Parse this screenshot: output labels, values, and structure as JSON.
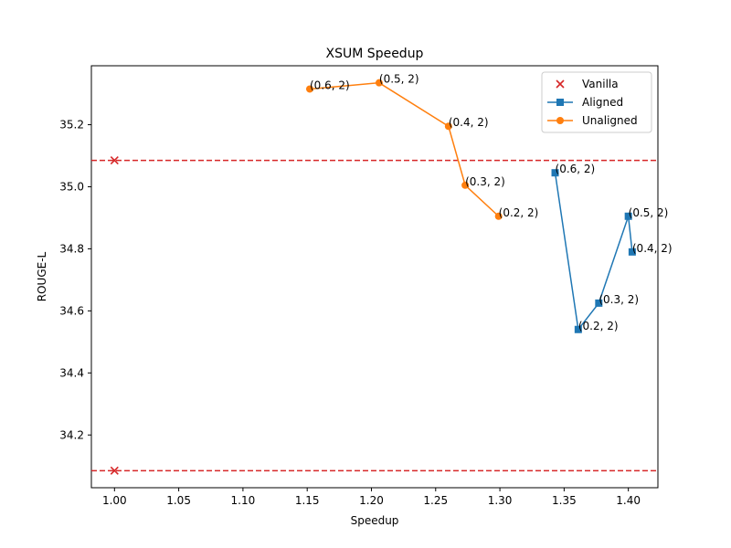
{
  "chart_data": {
    "type": "line",
    "title": "XSUM Speedup",
    "xlabel": "Speedup",
    "ylabel": "ROUGE-L",
    "xlim": [
      0.982,
      1.423
    ],
    "ylim": [
      34.03,
      35.39
    ],
    "xticks": [
      "1.00",
      "1.05",
      "1.10",
      "1.15",
      "1.20",
      "1.25",
      "1.30",
      "1.35",
      "1.40"
    ],
    "yticks": [
      "34.2",
      "34.4",
      "34.6",
      "34.8",
      "35.0",
      "35.2"
    ],
    "grid": false,
    "legend_position": "top-right",
    "vanilla": {
      "name": "Vanilla",
      "color": "#d62728",
      "marker": "x",
      "x": 1.0,
      "levels": [
        35.085,
        34.085
      ]
    },
    "series": [
      {
        "name": "Aligned",
        "color": "#1f77b4",
        "marker": "square",
        "points": [
          {
            "x": 1.343,
            "y": 35.045,
            "label": "(0.6, 2)"
          },
          {
            "x": 1.361,
            "y": 34.54,
            "label": "(0.2, 2)"
          },
          {
            "x": 1.377,
            "y": 34.625,
            "label": "(0.3, 2)"
          },
          {
            "x": 1.4,
            "y": 34.905,
            "label": "(0.5, 2)"
          },
          {
            "x": 1.403,
            "y": 34.79,
            "label": "(0.4, 2)"
          }
        ]
      },
      {
        "name": "Unaligned",
        "color": "#ff7f0e",
        "marker": "circle",
        "points": [
          {
            "x": 1.152,
            "y": 35.315,
            "label": "(0.6, 2)"
          },
          {
            "x": 1.206,
            "y": 35.335,
            "label": "(0.5, 2)"
          },
          {
            "x": 1.26,
            "y": 35.195,
            "label": "(0.4, 2)"
          },
          {
            "x": 1.273,
            "y": 35.005,
            "label": "(0.3, 2)"
          },
          {
            "x": 1.299,
            "y": 34.905,
            "label": "(0.2, 2)"
          }
        ]
      }
    ]
  }
}
